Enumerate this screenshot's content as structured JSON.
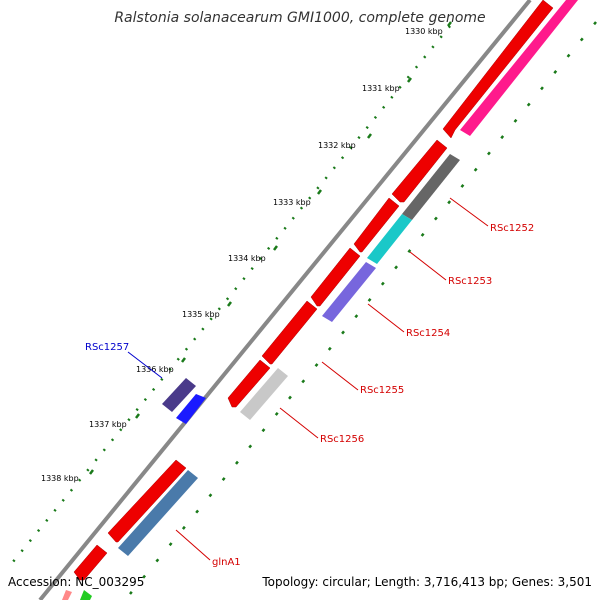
{
  "title": "Ralstonia solanacearum GMI1000, complete genome",
  "accession": "Accession: NC_003295",
  "topology": "Topology: circular; Length: 3,716,413 bp; Genes: 3,501",
  "ticks": [
    "1330 kbp",
    "1331 kbp",
    "1332 kbp",
    "1333 kbp",
    "1334 kbp",
    "1335 kbp",
    "1336 kbp",
    "1337 kbp",
    "1338 kbp"
  ],
  "gene_labels": [
    {
      "text": "RSc1252",
      "color": "#d40000"
    },
    {
      "text": "RSc1253",
      "color": "#d40000"
    },
    {
      "text": "RSc1254",
      "color": "#d40000"
    },
    {
      "text": "RSc1255",
      "color": "#d40000"
    },
    {
      "text": "RSc1256",
      "color": "#d40000"
    },
    {
      "text": "RSc1257",
      "color": "#0000cc"
    },
    {
      "text": "glnA1",
      "color": "#d40000"
    }
  ],
  "colors": {
    "backbone": "#888888",
    "tick_dots": "#1a7a1a",
    "red": "#ee0000",
    "pink": "#ff1a8c",
    "darkgray": "#666666",
    "cyan": "#1ac8c8",
    "purple": "#7766dd",
    "lightgray": "#c8c8c8",
    "darkpurple": "#4a3a8a",
    "blue": "#1a1aff",
    "steelblue": "#4a7aaa",
    "green": "#22cc22"
  }
}
